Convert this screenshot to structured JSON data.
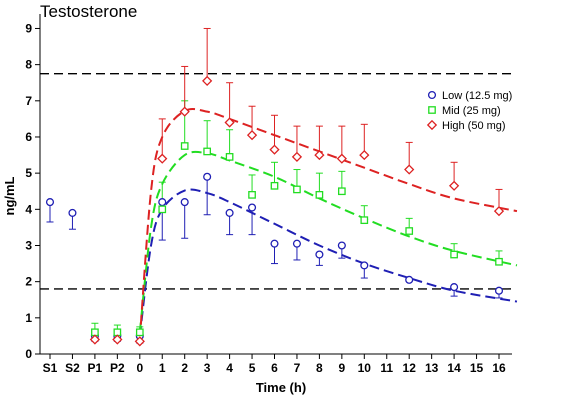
{
  "chart_data": {
    "type": "scatter",
    "title": "Testosterone",
    "xlabel": "Time (h)",
    "ylabel": "ng/mL",
    "ylim": [
      0,
      9.4
    ],
    "y_ticks": [
      0,
      1,
      2,
      3,
      4,
      5,
      6,
      7,
      8,
      9
    ],
    "x_categories": [
      "S1",
      "S2",
      "P1",
      "P2",
      "0",
      "1",
      "2",
      "3",
      "4",
      "5",
      "6",
      "7",
      "8",
      "9",
      "10",
      "11",
      "12",
      "13",
      "14",
      "15",
      "16"
    ],
    "grid": false,
    "legend_position": "right",
    "reference_lines": [
      1.8,
      7.75
    ],
    "series": [
      {
        "name": "Low (12.5 mg)",
        "color": "#1f1fb4",
        "marker": "circle",
        "points": [
          {
            "x": "S1",
            "y": 4.2,
            "err_low": 0.55,
            "err_high": 0.0
          },
          {
            "x": "S2",
            "y": 3.9,
            "err_low": 0.45,
            "err_high": 0.0
          },
          {
            "x": "P1",
            "y": 0.5,
            "err_low": 0.15,
            "err_high": 0.15
          },
          {
            "x": "P2",
            "y": 0.5,
            "err_low": 0.15,
            "err_high": 0.15
          },
          {
            "x": "0",
            "y": 0.5,
            "err_low": 0.2,
            "err_high": 0.0
          },
          {
            "x": "1",
            "y": 4.2,
            "err_low": 1.05,
            "err_high": 0.0
          },
          {
            "x": "2",
            "y": 4.2,
            "err_low": 1.0,
            "err_high": 0.0
          },
          {
            "x": "3",
            "y": 4.9,
            "err_low": 1.05,
            "err_high": 0.0
          },
          {
            "x": "4",
            "y": 3.9,
            "err_low": 0.6,
            "err_high": 0.0
          },
          {
            "x": "5",
            "y": 4.05,
            "err_low": 0.75,
            "err_high": 0.0
          },
          {
            "x": "6",
            "y": 3.05,
            "err_low": 0.55,
            "err_high": 0.0
          },
          {
            "x": "7",
            "y": 3.05,
            "err_low": 0.45,
            "err_high": 0.0
          },
          {
            "x": "8",
            "y": 2.75,
            "err_low": 0.3,
            "err_high": 0.0
          },
          {
            "x": "9",
            "y": 3.0,
            "err_low": 0.35,
            "err_high": 0.0
          },
          {
            "x": "10",
            "y": 2.45,
            "err_low": 0.35,
            "err_high": 0.0
          },
          {
            "x": "12",
            "y": 2.05,
            "err_low": 0.0,
            "err_high": 0.0
          },
          {
            "x": "14",
            "y": 1.85,
            "err_low": 0.25,
            "err_high": 0.0
          },
          {
            "x": "16",
            "y": 1.75,
            "err_low": 0.2,
            "err_high": 0.0
          }
        ],
        "fit_curve": [
          {
            "x": "0",
            "y": 0.5
          },
          {
            "x": "0.5",
            "y": 3.0
          },
          {
            "x": "1",
            "y": 4.0
          },
          {
            "x": "2",
            "y": 4.52
          },
          {
            "x": "3",
            "y": 4.45
          },
          {
            "x": "4",
            "y": 4.2
          },
          {
            "x": "6",
            "y": 3.6
          },
          {
            "x": "8",
            "y": 3.0
          },
          {
            "x": "10",
            "y": 2.5
          },
          {
            "x": "12",
            "y": 2.1
          },
          {
            "x": "14",
            "y": 1.75
          },
          {
            "x": "16.8",
            "y": 1.45
          }
        ]
      },
      {
        "name": "Mid (25 mg)",
        "color": "#22dd22",
        "marker": "square",
        "points": [
          {
            "x": "P1",
            "y": 0.6,
            "err_low": 0.15,
            "err_high": 0.25
          },
          {
            "x": "P2",
            "y": 0.6,
            "err_low": 0.15,
            "err_high": 0.2
          },
          {
            "x": "0",
            "y": 0.6,
            "err_low": 0.15,
            "err_high": 0.15
          },
          {
            "x": "1",
            "y": 4.0,
            "err_low": 0.0,
            "err_high": 0.75
          },
          {
            "x": "2",
            "y": 5.75,
            "err_low": 0.0,
            "err_high": 1.25
          },
          {
            "x": "3",
            "y": 5.6,
            "err_low": 0.0,
            "err_high": 0.85
          },
          {
            "x": "4",
            "y": 5.45,
            "err_low": 0.0,
            "err_high": 0.75
          },
          {
            "x": "5",
            "y": 4.4,
            "err_low": 0.0,
            "err_high": 0.55
          },
          {
            "x": "6",
            "y": 4.65,
            "err_low": 0.0,
            "err_high": 0.65
          },
          {
            "x": "7",
            "y": 4.55,
            "err_low": 0.0,
            "err_high": 0.55
          },
          {
            "x": "8",
            "y": 4.4,
            "err_low": 0.0,
            "err_high": 0.6
          },
          {
            "x": "9",
            "y": 4.5,
            "err_low": 0.0,
            "err_high": 0.55
          },
          {
            "x": "10",
            "y": 3.7,
            "err_low": 0.0,
            "err_high": 0.4
          },
          {
            "x": "12",
            "y": 3.4,
            "err_low": 0.0,
            "err_high": 0.35
          },
          {
            "x": "14",
            "y": 2.75,
            "err_low": 0.0,
            "err_high": 0.3
          },
          {
            "x": "16",
            "y": 2.55,
            "err_low": 0.0,
            "err_high": 0.3
          }
        ],
        "fit_curve": [
          {
            "x": "0",
            "y": 0.6
          },
          {
            "x": "0.5",
            "y": 3.5
          },
          {
            "x": "1",
            "y": 4.7
          },
          {
            "x": "2",
            "y": 5.5
          },
          {
            "x": "3",
            "y": 5.55
          },
          {
            "x": "4",
            "y": 5.35
          },
          {
            "x": "6",
            "y": 4.9
          },
          {
            "x": "8",
            "y": 4.3
          },
          {
            "x": "10",
            "y": 3.75
          },
          {
            "x": "12",
            "y": 3.25
          },
          {
            "x": "14",
            "y": 2.85
          },
          {
            "x": "16.8",
            "y": 2.45
          }
        ]
      },
      {
        "name": "High (50 mg)",
        "color": "#dd2222",
        "marker": "diamond",
        "points": [
          {
            "x": "P1",
            "y": 0.4,
            "err_low": 0.0,
            "err_high": 0.1
          },
          {
            "x": "P2",
            "y": 0.4,
            "err_low": 0.0,
            "err_high": 0.1
          },
          {
            "x": "0",
            "y": 0.35,
            "err_low": 0.0,
            "err_high": 0.1
          },
          {
            "x": "1",
            "y": 5.4,
            "err_low": 0.0,
            "err_high": 1.1
          },
          {
            "x": "2",
            "y": 6.7,
            "err_low": 0.0,
            "err_high": 1.25
          },
          {
            "x": "3",
            "y": 7.55,
            "err_low": 0.0,
            "err_high": 1.45
          },
          {
            "x": "4",
            "y": 6.4,
            "err_low": 0.0,
            "err_high": 1.1
          },
          {
            "x": "5",
            "y": 6.05,
            "err_low": 0.0,
            "err_high": 0.8
          },
          {
            "x": "6",
            "y": 5.65,
            "err_low": 0.0,
            "err_high": 0.95
          },
          {
            "x": "7",
            "y": 5.45,
            "err_low": 0.0,
            "err_high": 0.85
          },
          {
            "x": "8",
            "y": 5.5,
            "err_low": 0.0,
            "err_high": 0.8
          },
          {
            "x": "9",
            "y": 5.4,
            "err_low": 0.0,
            "err_high": 0.9
          },
          {
            "x": "10",
            "y": 5.5,
            "err_low": 0.0,
            "err_high": 0.85
          },
          {
            "x": "12",
            "y": 5.1,
            "err_low": 0.0,
            "err_high": 0.75
          },
          {
            "x": "14",
            "y": 4.65,
            "err_low": 0.0,
            "err_high": 0.65
          },
          {
            "x": "16",
            "y": 3.95,
            "err_low": 0.0,
            "err_high": 0.6
          }
        ],
        "fit_curve": [
          {
            "x": "0",
            "y": 0.4
          },
          {
            "x": "0.5",
            "y": 4.5
          },
          {
            "x": "1",
            "y": 6.0
          },
          {
            "x": "2",
            "y": 6.72
          },
          {
            "x": "3",
            "y": 6.7
          },
          {
            "x": "4",
            "y": 6.5
          },
          {
            "x": "6",
            "y": 6.05
          },
          {
            "x": "8",
            "y": 5.6
          },
          {
            "x": "10",
            "y": 5.15
          },
          {
            "x": "12",
            "y": 4.7
          },
          {
            "x": "14",
            "y": 4.3
          },
          {
            "x": "16.8",
            "y": 3.95
          }
        ]
      }
    ]
  }
}
